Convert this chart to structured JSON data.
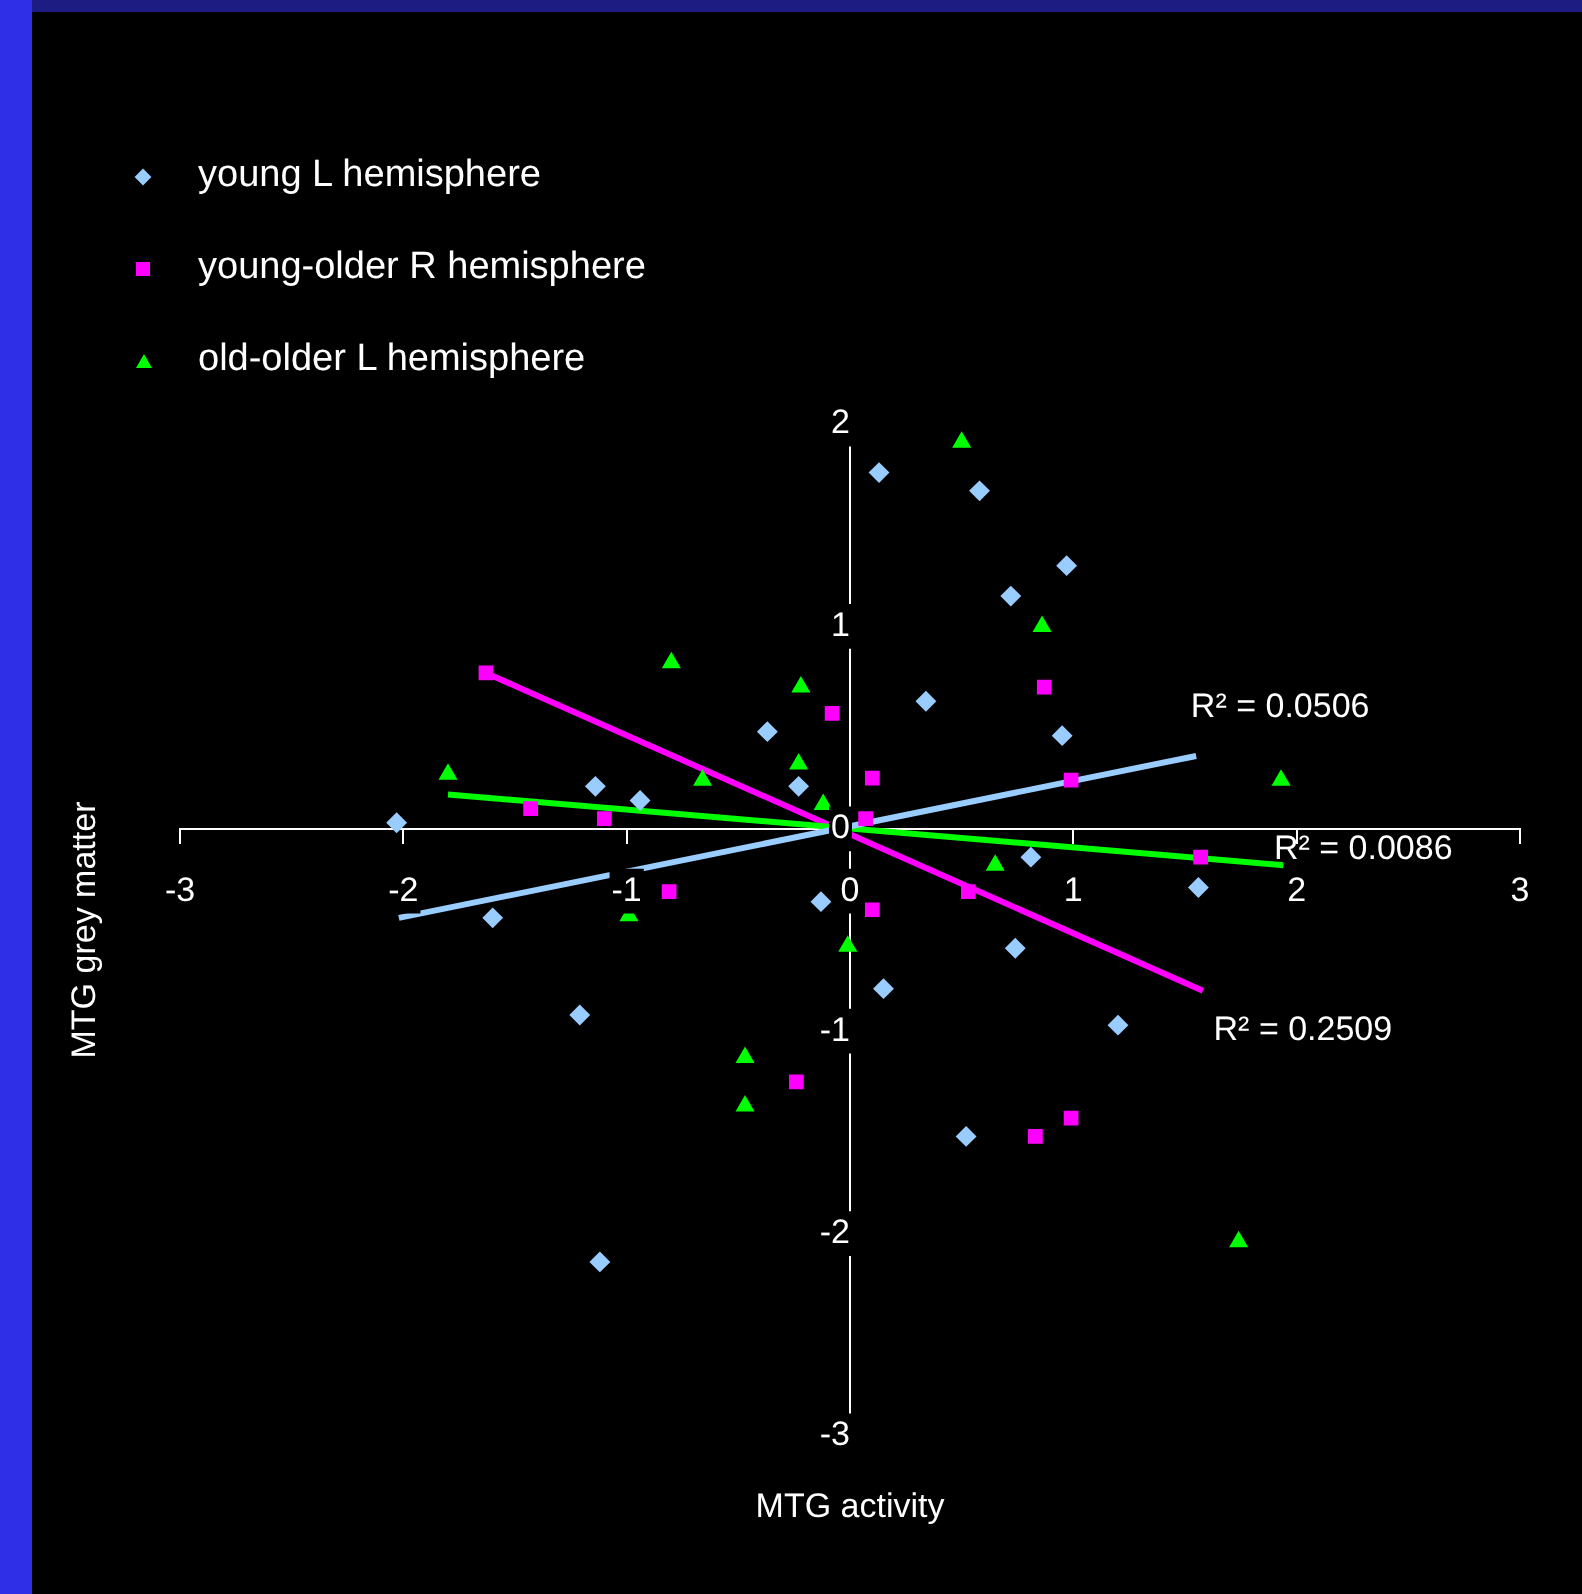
{
  "chart_data": {
    "type": "scatter",
    "xlabel": "MTG activity",
    "ylabel": "MTG grey matter",
    "xlim": [
      -3,
      3
    ],
    "xticks": [
      -3,
      -2,
      -1,
      0,
      1,
      2,
      3
    ],
    "ylim": [
      -3,
      2
    ],
    "yticks": [
      -3,
      -2,
      -1,
      0,
      1,
      2
    ],
    "grid": false,
    "legend": "top left",
    "series": [
      {
        "name": "young L hemisphere",
        "type": "scatter",
        "marker": "diamond",
        "color": "#99ccff",
        "x": [
          -2.03,
          -1.6,
          -1.21,
          -1.14,
          -0.94,
          -1.12,
          -0.37,
          -0.23,
          -0.13,
          0.13,
          0.58,
          0.97,
          0.72,
          0.34,
          0.95,
          0.81,
          1.56,
          0.74,
          0.15,
          1.2,
          0.52
        ],
        "values": [
          0.03,
          -0.44,
          -0.92,
          0.21,
          0.14,
          -2.14,
          0.48,
          0.21,
          -0.36,
          1.76,
          1.67,
          1.3,
          1.15,
          0.63,
          0.46,
          -0.14,
          -0.29,
          -0.59,
          -0.79,
          -0.97,
          -1.52
        ]
      },
      {
        "name": "young-older R hemisphere",
        "type": "scatter",
        "marker": "square",
        "color": "#ff00ff",
        "x": [
          -1.63,
          -1.43,
          -1.1,
          -0.81,
          -0.08,
          -0.24,
          0.1,
          0.07,
          0.1,
          0.53,
          0.87,
          0.99,
          1.57,
          0.99,
          0.83
        ],
        "values": [
          0.77,
          0.1,
          0.05,
          -0.31,
          0.57,
          -1.25,
          0.25,
          0.05,
          -0.4,
          -0.31,
          0.7,
          0.24,
          -0.14,
          -1.43,
          -1.52
        ]
      },
      {
        "name": "old-older L hemisphere",
        "type": "scatter",
        "marker": "triangle",
        "color": "#00ff00",
        "x": [
          -1.8,
          -0.8,
          -0.66,
          -0.22,
          -0.23,
          -0.12,
          -0.99,
          -0.47,
          -0.47,
          -0.01,
          0.5,
          0.86,
          1.93,
          0.65,
          1.74
        ],
        "values": [
          0.27,
          0.82,
          0.24,
          0.7,
          0.32,
          0.12,
          -0.43,
          -1.13,
          -1.37,
          -0.58,
          1.91,
          1.0,
          0.24,
          -0.18,
          -2.04
        ]
      },
      {
        "type": "line",
        "marker": "none",
        "color": "#99ccff",
        "x": [
          -2.02,
          1.55
        ],
        "values": [
          -0.44,
          0.36
        ]
      },
      {
        "type": "line",
        "marker": "none",
        "color": "#00ff00",
        "x": [
          -1.8,
          1.94
        ],
        "values": [
          0.17,
          -0.18
        ]
      },
      {
        "type": "line",
        "marker": "none",
        "color": "#ff00ff",
        "x": [
          -1.63,
          1.58
        ],
        "values": [
          0.77,
          -0.8
        ]
      }
    ],
    "annotations": [
      "R² = 0.0506",
      "R² = 0.0086",
      "R² = 0.2509"
    ]
  }
}
